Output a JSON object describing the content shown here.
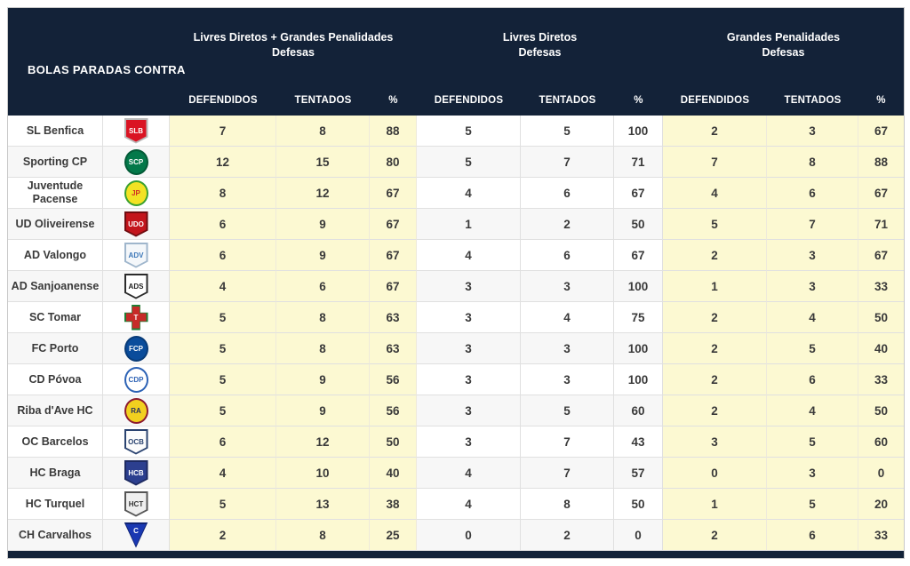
{
  "colors": {
    "header_bg": "#132238",
    "highlight_cell": "#FCF9D2",
    "alt_row": "#f7f7f7",
    "border": "#e0e0e0",
    "text": "#3a3a3a",
    "header_text": "#ffffff"
  },
  "chart_data": {
    "type": "table",
    "title": "BOLAS PARADAS CONTRA",
    "column_groups": [
      {
        "label": "Livres Diretos + Grandes Penalidades",
        "sublabel": "Defesas"
      },
      {
        "label": "Livres Diretos",
        "sublabel": "Defesas"
      },
      {
        "label": "Grandes Penalidades",
        "sublabel": "Defesas"
      }
    ],
    "columns": [
      "DEFENDIDOS",
      "TENTADOS",
      "%",
      "DEFENDIDOS",
      "TENTADOS",
      "%",
      "DEFENDIDOS",
      "TENTADOS",
      "%"
    ],
    "rows": [
      {
        "team": "SL Benfica",
        "logo": {
          "shape": "shield",
          "bg": "#DA1423",
          "border": "#b9b9b9",
          "fg": "#ffffff",
          "initials": "SLB"
        },
        "values": [
          7,
          8,
          88,
          5,
          5,
          100,
          2,
          3,
          67
        ]
      },
      {
        "team": "Sporting CP",
        "logo": {
          "shape": "circle",
          "bg": "#04794A",
          "border": "#035a37",
          "fg": "#ffffff",
          "initials": "SCP"
        },
        "values": [
          12,
          15,
          80,
          5,
          7,
          71,
          7,
          8,
          88
        ]
      },
      {
        "team": "Juventude Pacense",
        "logo": {
          "shape": "circle",
          "bg": "#F3E224",
          "border": "#3AA02F",
          "fg": "#CE2B24",
          "initials": "JP"
        },
        "values": [
          8,
          12,
          67,
          4,
          6,
          67,
          4,
          6,
          67
        ]
      },
      {
        "team": "UD Oliveirense",
        "logo": {
          "shape": "shield",
          "bg": "#C3151C",
          "border": "#6f0d11",
          "fg": "#ffffff",
          "initials": "UDO"
        },
        "values": [
          6,
          9,
          67,
          1,
          2,
          50,
          5,
          7,
          71
        ]
      },
      {
        "team": "AD Valongo",
        "logo": {
          "shape": "shield",
          "bg": "#F4F7FA",
          "border": "#9FB6CC",
          "fg": "#3C77B8",
          "initials": "ADV"
        },
        "values": [
          6,
          9,
          67,
          4,
          6,
          67,
          2,
          3,
          67
        ]
      },
      {
        "team": "AD Sanjoanense",
        "logo": {
          "shape": "shield",
          "bg": "#ffffff",
          "border": "#2b2b2b",
          "fg": "#1e1e1e",
          "initials": "ADS"
        },
        "values": [
          4,
          6,
          67,
          3,
          3,
          100,
          1,
          3,
          33
        ]
      },
      {
        "team": "SC Tomar",
        "logo": {
          "shape": "cross",
          "bg": "#C62B28",
          "border": "#1E7E34",
          "fg": "#ffffff",
          "initials": "T"
        },
        "values": [
          5,
          8,
          63,
          3,
          4,
          75,
          2,
          4,
          50
        ]
      },
      {
        "team": "FC Porto",
        "logo": {
          "shape": "circle",
          "bg": "#0A4C9B",
          "border": "#083b78",
          "fg": "#ffffff",
          "initials": "FCP"
        },
        "values": [
          5,
          8,
          63,
          3,
          3,
          100,
          2,
          5,
          40
        ]
      },
      {
        "team": "CD Póvoa",
        "logo": {
          "shape": "circle",
          "bg": "#ffffff",
          "border": "#2C62B5",
          "fg": "#2C62B5",
          "initials": "CDP"
        },
        "values": [
          5,
          9,
          56,
          3,
          3,
          100,
          2,
          6,
          33
        ]
      },
      {
        "team": "Riba d'Ave HC",
        "logo": {
          "shape": "circle",
          "bg": "#F2D01F",
          "border": "#8C1B2F",
          "fg": "#27315E",
          "initials": "RA"
        },
        "values": [
          5,
          9,
          56,
          3,
          5,
          60,
          2,
          4,
          50
        ]
      },
      {
        "team": "OC Barcelos",
        "logo": {
          "shape": "shield",
          "bg": "#FCFCFC",
          "border": "#2A4370",
          "fg": "#2A4370",
          "initials": "OCB"
        },
        "values": [
          6,
          12,
          50,
          3,
          7,
          43,
          3,
          5,
          60
        ]
      },
      {
        "team": "HC Braga",
        "logo": {
          "shape": "shield",
          "bg": "#2C3F8F",
          "border": "#1d2a61",
          "fg": "#ffffff",
          "initials": "HCB"
        },
        "values": [
          4,
          10,
          40,
          4,
          7,
          57,
          0,
          3,
          0
        ]
      },
      {
        "team": "HC Turquel",
        "logo": {
          "shape": "shield",
          "bg": "#EFEFEF",
          "border": "#555555",
          "fg": "#333333",
          "initials": "HCT"
        },
        "values": [
          5,
          13,
          38,
          4,
          8,
          50,
          1,
          5,
          20
        ]
      },
      {
        "team": "CH Carvalhos",
        "logo": {
          "shape": "triangle",
          "bg": "#1A38B2",
          "border": "#0f2374",
          "fg": "#ffffff",
          "initials": "C"
        },
        "values": [
          2,
          8,
          25,
          0,
          2,
          0,
          2,
          6,
          33
        ]
      }
    ]
  }
}
